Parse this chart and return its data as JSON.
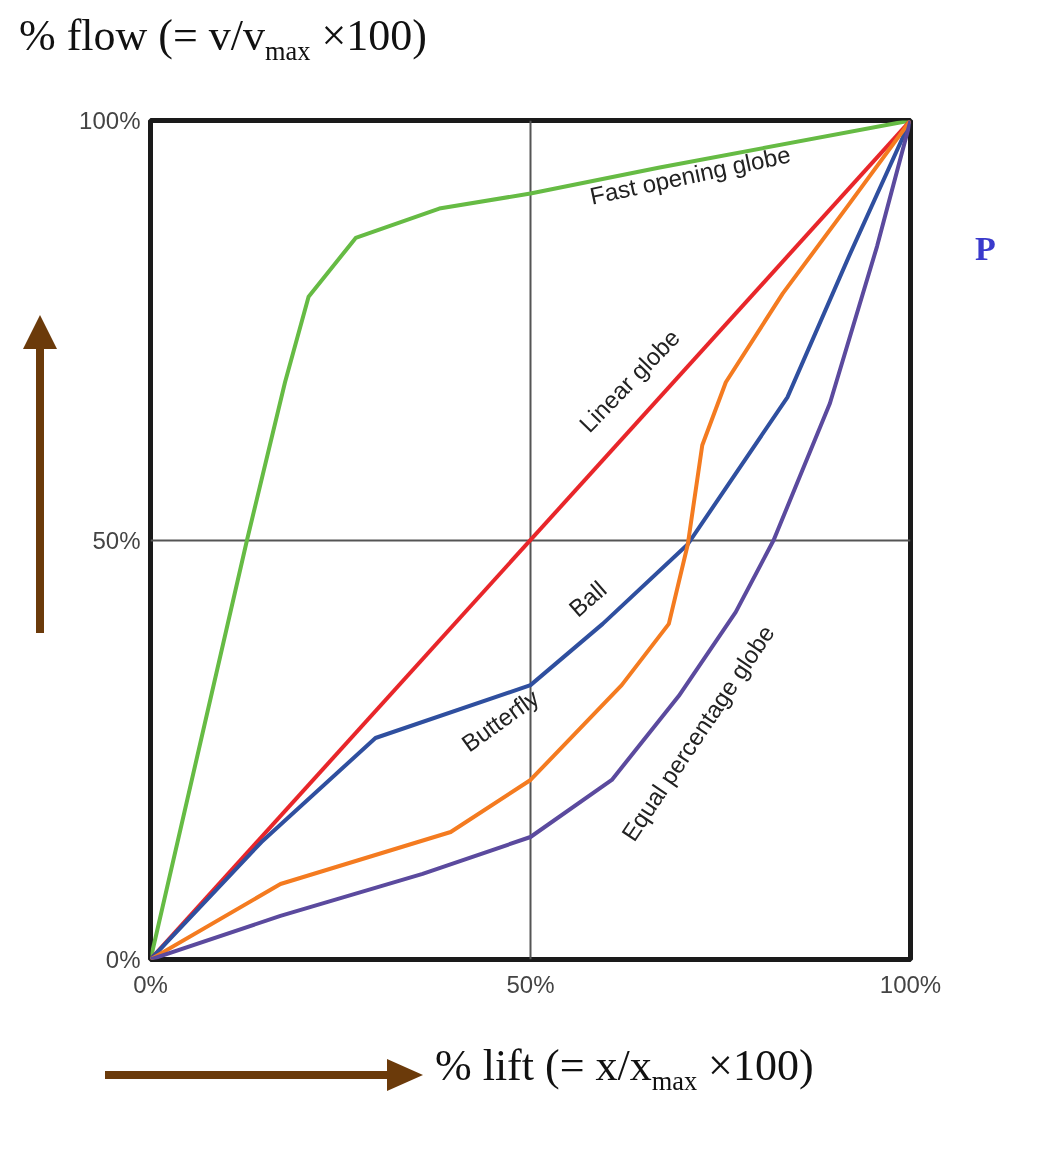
{
  "chart_data": {
    "type": "line",
    "ylabel": "% flow (= v/v$_{max}$ ×100)",
    "xlabel": "% lift (= x/x$_{max}$ ×100)",
    "xlim": [
      0,
      100
    ],
    "ylim": [
      0,
      100
    ],
    "xticks": [
      {
        "value": 0,
        "label": "0%"
      },
      {
        "value": 50,
        "label": "50%"
      },
      {
        "value": 100,
        "label": "100%"
      }
    ],
    "yticks": [
      {
        "value": 0,
        "label": "0%"
      },
      {
        "value": 50,
        "label": "50%"
      },
      {
        "value": 100,
        "label": "100%"
      }
    ],
    "grid": true,
    "marker": "none",
    "line_style": "solid",
    "series": [
      {
        "color": "#66bb44",
        "x": [
          0,
          12.7,
          17.7,
          20.8,
          27,
          38,
          50,
          67,
          100
        ],
        "values": [
          0,
          50,
          68.8,
          79,
          86,
          89.5,
          91.3,
          94.4,
          100
        ]
      },
      {
        "color": "#e8262a",
        "x": [
          0,
          100
        ],
        "values": [
          0,
          100
        ]
      },
      {
        "color": "#2f4f9f",
        "x": [
          0,
          14.6,
          29.6,
          50,
          59.5,
          70.7,
          83.8,
          91.9,
          100
        ],
        "values": [
          0,
          14,
          26.4,
          32.7,
          40,
          49.5,
          67,
          83.8,
          100
        ]
      },
      {
        "color": "#f47b20",
        "x": [
          0,
          17.1,
          39.5,
          50,
          62,
          68.2,
          70.7,
          72.6,
          75.7,
          83.2,
          91.9,
          100
        ],
        "values": [
          0,
          9,
          15.2,
          21.4,
          32.7,
          40,
          49.5,
          61.3,
          68.8,
          79.4,
          90,
          100
        ]
      },
      {
        "color": "#5b4a9e",
        "x": [
          0,
          17.1,
          35.8,
          50,
          60.7,
          69.5,
          77,
          82,
          89.4,
          95.6,
          100
        ],
        "values": [
          0,
          5.2,
          10.2,
          14.6,
          21.4,
          31.4,
          41.4,
          50,
          66.3,
          85,
          100
        ]
      }
    ],
    "annotations": [
      "Fast opening globe",
      "Linear globe",
      "Ball",
      "Butterfly",
      "Equal percentage globe",
      "P"
    ]
  }
}
